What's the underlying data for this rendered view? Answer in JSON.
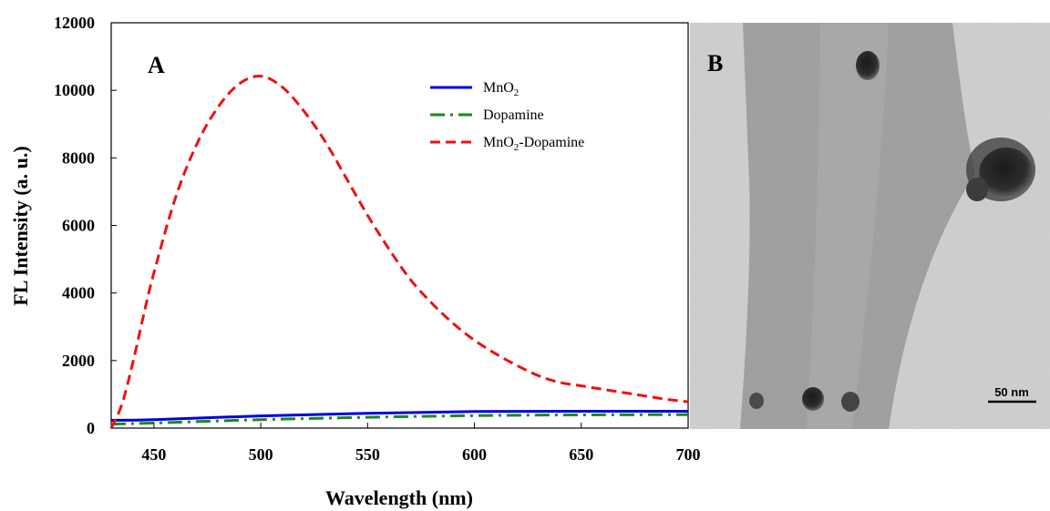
{
  "chart_data": {
    "type": "line",
    "panel_label": "A",
    "xlabel": "Wavelength (nm)",
    "ylabel": "FL Intensity (a. u.)",
    "xlim": [
      430,
      700
    ],
    "ylim": [
      0,
      12000
    ],
    "x_ticks": [
      "450",
      "500",
      "550",
      "600",
      "650",
      "700"
    ],
    "y_ticks": [
      "0",
      "2000",
      "4000",
      "6000",
      "8000",
      "10000",
      "12000"
    ],
    "grid": false,
    "legend_position": "top-right",
    "series": [
      {
        "name": "MnO",
        "name_subscript": "2",
        "name_suffix": "",
        "color": "#0000dd",
        "style": "solid",
        "x": [
          430,
          450,
          500,
          550,
          600,
          650,
          700
        ],
        "y": [
          230,
          250,
          360,
          440,
          490,
          500,
          500
        ]
      },
      {
        "name": "Dopamine",
        "name_subscript": "",
        "name_suffix": "",
        "color": "#1a8a1a",
        "style": "dashdot",
        "x": [
          430,
          450,
          500,
          550,
          600,
          650,
          700
        ],
        "y": [
          120,
          150,
          250,
          320,
          370,
          390,
          400
        ]
      },
      {
        "name": "MnO",
        "name_subscript": "2",
        "name_suffix": "-Dopamine",
        "color": "#ee1111",
        "style": "dashed",
        "x": [
          430,
          435,
          440,
          445,
          450,
          460,
          470,
          480,
          490,
          500,
          510,
          520,
          530,
          540,
          550,
          560,
          570,
          580,
          590,
          600,
          610,
          620,
          630,
          640,
          650,
          660,
          670,
          680,
          690,
          700
        ],
        "y": [
          0,
          700,
          1900,
          3300,
          4600,
          6800,
          8400,
          9500,
          10200,
          10420,
          10100,
          9400,
          8500,
          7400,
          6300,
          5300,
          4400,
          3700,
          3100,
          2600,
          2200,
          1850,
          1550,
          1350,
          1250,
          1150,
          1050,
          950,
          850,
          780
        ]
      }
    ]
  },
  "image_panel": {
    "panel_label": "B",
    "scale_bar_label": "50 nm"
  }
}
